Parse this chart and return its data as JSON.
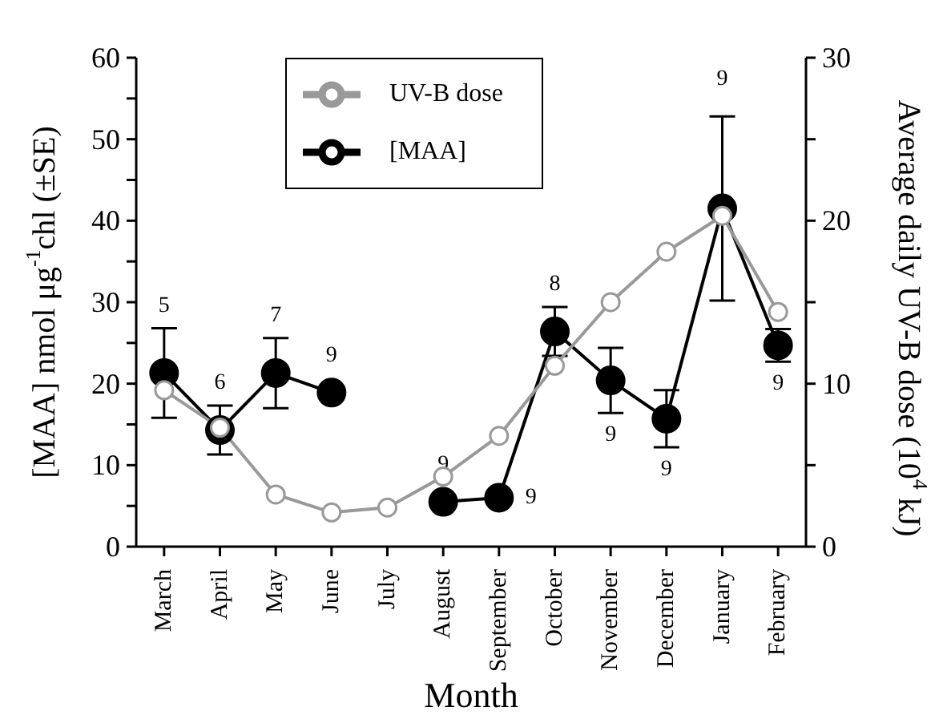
{
  "chart_data": {
    "type": "line",
    "xlabel": "Month",
    "ylabel": "[MAA] nmol μg$^{-1}$chl (±SE)",
    "y2label": "Average daily UV-B dose (10$^{4}$ kJ)",
    "categories": [
      "March",
      "April",
      "May",
      "June",
      "July",
      "August",
      "September",
      "October",
      "November",
      "December",
      "January",
      "February"
    ],
    "series": [
      {
        "name": "[MAA]",
        "color": "#000000",
        "values": [
          21.3,
          14.3,
          21.3,
          18.9,
          null,
          5.5,
          6,
          26.4,
          20.4,
          15.7,
          41.5,
          24.7
        ],
        "errors": [
          5.5,
          3,
          4.3,
          null,
          null,
          null,
          null,
          3,
          4,
          3.5,
          11.3,
          2
        ]
      },
      {
        "name": "UV-B dose",
        "color": "#999999",
        "axis": "y2",
        "values": [
          9.6,
          7.3,
          3.2,
          2.1,
          2.4,
          4.3,
          6.8,
          11.1,
          15,
          18.1,
          20.3,
          14.4
        ]
      }
    ],
    "annotations": [
      {
        "text": "5",
        "x": "March",
        "y": 21.3
      },
      {
        "text": "6",
        "x": "April",
        "y": 14.3
      },
      {
        "text": "7",
        "x": "May",
        "y": 21.3
      },
      {
        "text": "9",
        "x": "June",
        "y": 18.9
      },
      {
        "text": "9",
        "x": "August",
        "y": 5.5
      },
      {
        "text": "9",
        "x": "September",
        "y": 6
      },
      {
        "text": "8",
        "x": "October",
        "y": 26.4
      },
      {
        "text": "9",
        "x": "November",
        "y": 20.4
      },
      {
        "text": "9",
        "x": "December",
        "y": 15.7
      },
      {
        "text": "9",
        "x": "January",
        "y": 52.8
      },
      {
        "text": "9",
        "x": "February",
        "y": 24.7
      }
    ],
    "ylim": [
      0,
      60
    ],
    "yticks": [
      0,
      {
        "value": 5,
        "label": null
      },
      10,
      {
        "value": 15,
        "label": null
      },
      20,
      {
        "value": 25,
        "label": null
      },
      30,
      {
        "value": 35,
        "label": null
      },
      40,
      {
        "value": 45,
        "label": null
      },
      50,
      {
        "value": 55,
        "label": null
      },
      60
    ],
    "y2lim": [
      0,
      30
    ],
    "y2ticks": [
      0,
      {
        "value": 5,
        "label": null
      },
      10,
      {
        "value": 15,
        "label": null
      },
      20,
      {
        "value": 25,
        "label": null
      },
      30
    ],
    "marker": "circle",
    "legend": "top",
    "grid": false
  }
}
